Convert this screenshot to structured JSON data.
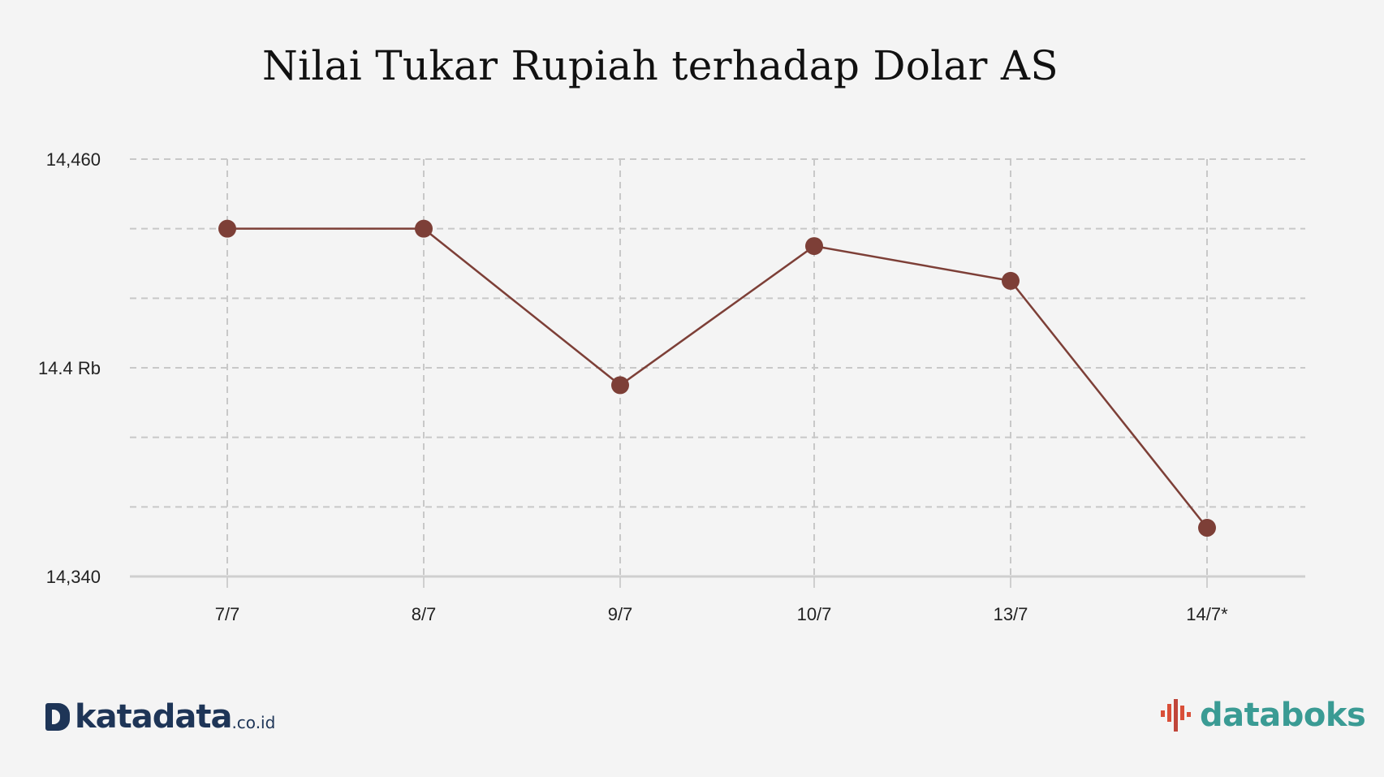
{
  "chart_data": {
    "type": "line",
    "title": "Nilai Tukar Rupiah terhadap Dolar AS",
    "xlabel": "",
    "ylabel": "",
    "categories": [
      "7/7",
      "8/7",
      "9/7",
      "10/7",
      "13/7",
      "14/7*"
    ],
    "series": [
      {
        "values": [
          14440,
          14440,
          14395,
          14435,
          14425,
          14354
        ]
      }
    ],
    "ylim": [
      14340,
      14460
    ],
    "ytick_labels": [
      {
        "value": 14460,
        "label": "14,460"
      },
      {
        "value": 14400,
        "label": "14.4 Rb"
      },
      {
        "value": 14340,
        "label": "14,340"
      }
    ],
    "grid": true,
    "grid_step": 20,
    "line_color": "#7d3f37"
  },
  "footer": {
    "left_brand": "katadata",
    "left_suffix": ".co.id",
    "right_brand": "databoks",
    "icon_colors": [
      "#d94f38",
      "#c0463a",
      "#3a9b94"
    ]
  }
}
